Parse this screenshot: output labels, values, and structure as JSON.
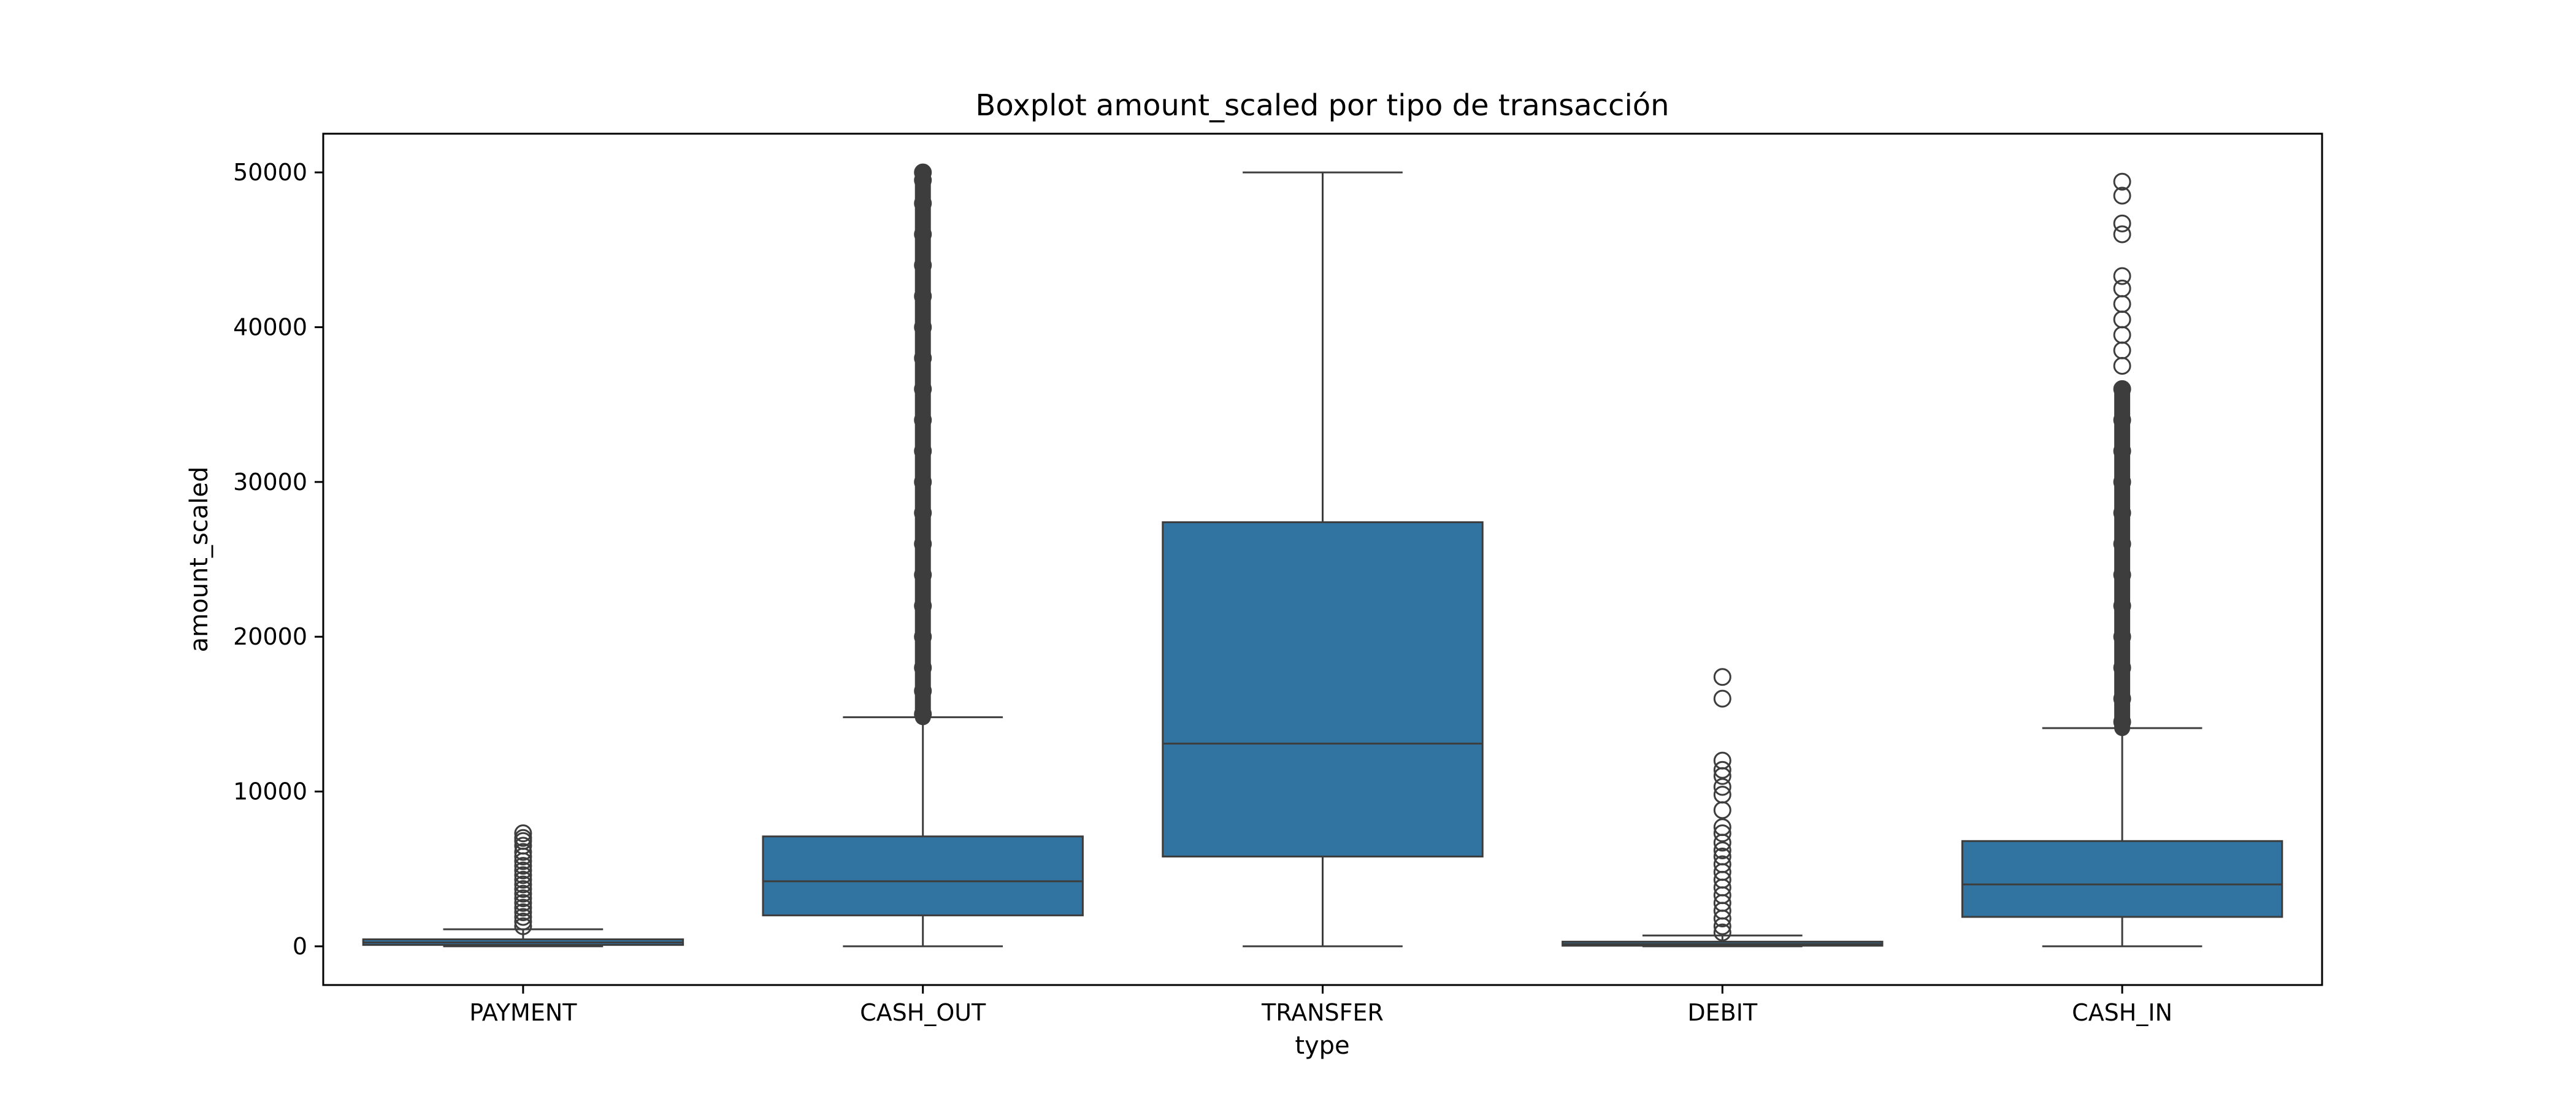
{
  "chart_data": {
    "type": "box",
    "title": "Boxplot amount_scaled por tipo de transacción",
    "xlabel": "type",
    "ylabel": "amount_scaled",
    "ylim": [
      -2500,
      52500
    ],
    "yticks": [
      0,
      10000,
      20000,
      30000,
      40000,
      50000
    ],
    "grid": false,
    "colors": {
      "box": "#3274a1",
      "line": "#3d3d3d",
      "flier": "#3d3d3d"
    },
    "categories": [
      "PAYMENT",
      "CASH_OUT",
      "TRANSFER",
      "DEBIT",
      "CASH_IN"
    ],
    "boxes": [
      {
        "category": "PAYMENT",
        "whisker_low": 0,
        "q1": 90,
        "median": 250,
        "q3": 450,
        "whisker_high": 1100,
        "outliers": [
          1300,
          1600,
          1900,
          2200,
          2500,
          2800,
          3100,
          3400,
          3700,
          4000,
          4300,
          4600,
          4900,
          5200,
          5500,
          5800,
          6100,
          6500,
          6800,
          7000,
          7300
        ]
      },
      {
        "category": "CASH_OUT",
        "whisker_low": 0,
        "q1": 2000,
        "median": 4200,
        "q3": 7100,
        "whisker_high": 14800,
        "outliers_dense_range": [
          14800,
          50000
        ],
        "outliers": [
          15000,
          16500,
          18000,
          20000,
          22000,
          24000,
          26000,
          28000,
          30000,
          32000,
          34000,
          36000,
          38000,
          40000,
          42000,
          44000,
          46000,
          48000,
          49500,
          50000
        ]
      },
      {
        "category": "TRANSFER",
        "whisker_low": 0,
        "q1": 5800,
        "median": 13100,
        "q3": 27400,
        "whisker_high": 50000,
        "outliers": []
      },
      {
        "category": "DEBIT",
        "whisker_low": 0,
        "q1": 40,
        "median": 150,
        "q3": 300,
        "whisker_high": 700,
        "outliers": [
          900,
          1300,
          1800,
          2300,
          2800,
          3300,
          3800,
          4300,
          4800,
          5300,
          5800,
          6200,
          6700,
          7300,
          7700,
          8800,
          9800,
          10300,
          11000,
          11400,
          12000,
          16000,
          17400
        ]
      },
      {
        "category": "CASH_IN",
        "whisker_low": 0,
        "q1": 1900,
        "median": 4000,
        "q3": 6800,
        "whisker_high": 14100,
        "outliers_dense_range": [
          14100,
          36000
        ],
        "outliers": [
          14500,
          16000,
          18000,
          20000,
          22000,
          24000,
          26000,
          28000,
          30000,
          32000,
          34000,
          36000,
          37500,
          38500,
          39500,
          40500,
          41500,
          42500,
          43300,
          46000,
          46700,
          48500,
          49400
        ]
      }
    ]
  }
}
